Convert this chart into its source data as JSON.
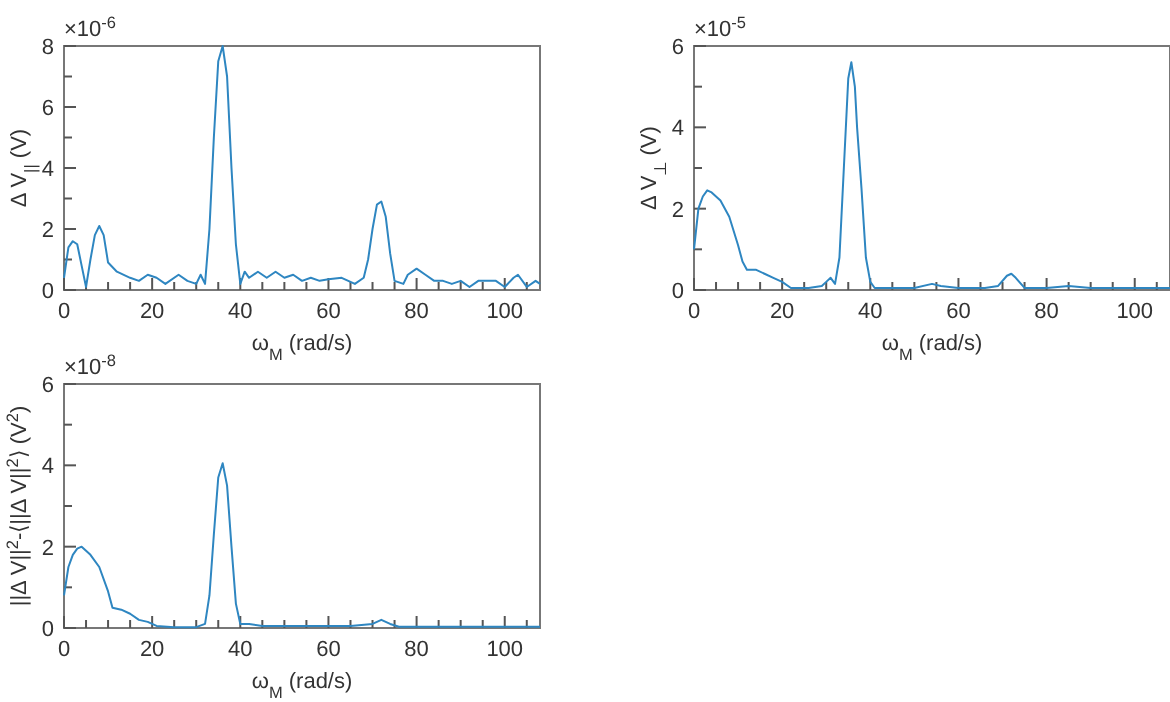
{
  "chart_data": [
    {
      "type": "line",
      "xlabel": "ω$_{M}$ (rad/s)",
      "ylabel": "Δ V$_{||}$ (V)",
      "annotations": [
        "×10$^{-6}$"
      ],
      "xlim": [
        0,
        108
      ],
      "ylim": [
        0,
        8
      ],
      "xticks": [
        0,
        {
          "value": 5,
          "label": null
        },
        {
          "value": 10,
          "label": null
        },
        {
          "value": 15,
          "label": null
        },
        20,
        {
          "value": 25,
          "label": null
        },
        {
          "value": 30,
          "label": null
        },
        {
          "value": 35,
          "label": null
        },
        40,
        {
          "value": 45,
          "label": null
        },
        {
          "value": 50,
          "label": null
        },
        {
          "value": 55,
          "label": null
        },
        60,
        {
          "value": 65,
          "label": null
        },
        {
          "value": 70,
          "label": null
        },
        {
          "value": 75,
          "label": null
        },
        80,
        {
          "value": 85,
          "label": null
        },
        {
          "value": 90,
          "label": null
        },
        {
          "value": 95,
          "label": null
        },
        100,
        {
          "value": 105,
          "label": null
        }
      ],
      "yticks": [
        0,
        {
          "value": 1,
          "label": null
        },
        2,
        {
          "value": 3,
          "label": null
        },
        4,
        {
          "value": 5,
          "label": null
        },
        6,
        {
          "value": 7,
          "label": null
        },
        8
      ],
      "series": [
        {
          "color": "#2e86c1",
          "x": [
            0,
            1,
            2,
            3,
            4,
            5,
            6,
            7,
            8,
            9,
            10,
            12,
            15,
            17,
            19,
            21,
            23,
            26,
            28,
            30,
            31,
            32,
            33,
            34,
            35,
            36,
            37,
            38,
            39,
            40,
            41,
            42,
            44,
            46,
            48,
            50,
            52,
            54,
            56,
            58,
            60,
            63,
            66,
            68,
            69,
            70,
            71,
            72,
            73,
            74,
            75,
            77,
            78,
            80,
            82,
            84,
            86,
            88,
            90,
            92,
            94,
            96,
            98,
            100,
            102,
            103,
            105,
            107,
            108
          ],
          "values": [
            0.4,
            1.4,
            1.6,
            1.5,
            0.8,
            0.1,
            1.0,
            1.8,
            2.1,
            1.8,
            0.9,
            0.6,
            0.4,
            0.3,
            0.5,
            0.4,
            0.2,
            0.5,
            0.3,
            0.2,
            0.5,
            0.2,
            2,
            5,
            7.5,
            8,
            7,
            4,
            1.5,
            0.2,
            0.6,
            0.4,
            0.6,
            0.4,
            0.6,
            0.4,
            0.5,
            0.3,
            0.4,
            0.3,
            0.35,
            0.4,
            0.2,
            0.4,
            1,
            2,
            2.8,
            2.9,
            2.4,
            1.2,
            0.3,
            0.2,
            0.5,
            0.7,
            0.5,
            0.3,
            0.3,
            0.2,
            0.3,
            0.1,
            0.3,
            0.3,
            0.3,
            0.1,
            0.4,
            0.5,
            0.1,
            0.3,
            0.2
          ]
        }
      ]
    },
    {
      "type": "line",
      "xlabel": "ω$_{M}$ (rad/s)",
      "ylabel": "Δ V$_{⊥}$ (V)",
      "annotations": [
        "×10$^{-5}$"
      ],
      "xlim": [
        0,
        108
      ],
      "ylim": [
        0,
        6
      ],
      "xticks": [
        0,
        {
          "value": 5,
          "label": null
        },
        {
          "value": 10,
          "label": null
        },
        {
          "value": 15,
          "label": null
        },
        20,
        {
          "value": 25,
          "label": null
        },
        {
          "value": 30,
          "label": null
        },
        {
          "value": 35,
          "label": null
        },
        40,
        {
          "value": 45,
          "label": null
        },
        {
          "value": 50,
          "label": null
        },
        {
          "value": 55,
          "label": null
        },
        60,
        {
          "value": 65,
          "label": null
        },
        {
          "value": 70,
          "label": null
        },
        {
          "value": 75,
          "label": null
        },
        80,
        {
          "value": 85,
          "label": null
        },
        {
          "value": 90,
          "label": null
        },
        {
          "value": 95,
          "label": null
        },
        100,
        {
          "value": 105,
          "label": null
        }
      ],
      "yticks": [
        0,
        {
          "value": 1,
          "label": null
        },
        2,
        {
          "value": 3,
          "label": null
        },
        4,
        {
          "value": 5,
          "label": null
        },
        6
      ],
      "series": [
        {
          "color": "#2e86c1",
          "x": [
            0,
            1,
            2,
            3,
            4,
            6,
            8,
            10,
            11,
            12,
            14,
            16,
            18,
            20,
            22,
            26,
            29,
            30,
            31,
            32,
            33,
            34,
            35,
            35.7,
            36.5,
            37,
            38,
            39,
            40,
            41,
            45,
            50,
            54,
            56,
            60,
            66,
            69,
            71,
            72,
            73,
            75,
            80,
            85,
            90,
            100,
            108
          ],
          "values": [
            1,
            2,
            2.3,
            2.45,
            2.4,
            2.2,
            1.8,
            1.1,
            0.7,
            0.5,
            0.5,
            0.4,
            0.3,
            0.2,
            0.05,
            0.05,
            0.1,
            0.2,
            0.3,
            0.15,
            0.8,
            3,
            5.2,
            5.6,
            5,
            4,
            2.5,
            0.8,
            0.2,
            0.05,
            0.05,
            0.05,
            0.15,
            0.1,
            0.05,
            0.05,
            0.1,
            0.35,
            0.4,
            0.3,
            0.05,
            0.05,
            0.1,
            0.05,
            0.05,
            0.05
          ]
        }
      ]
    },
    {
      "type": "line",
      "xlabel": "ω$_{M}$ (rad/s)",
      "ylabel": "||Δ V||$^{2}$-⟨||Δ V||$^{2}$⟩ (V$^{2}$)",
      "annotations": [
        "×10$^{-8}$"
      ],
      "xlim": [
        0,
        108
      ],
      "ylim": [
        0,
        6
      ],
      "xticks": [
        0,
        {
          "value": 5,
          "label": null
        },
        {
          "value": 10,
          "label": null
        },
        {
          "value": 15,
          "label": null
        },
        20,
        {
          "value": 25,
          "label": null
        },
        {
          "value": 30,
          "label": null
        },
        {
          "value": 35,
          "label": null
        },
        40,
        {
          "value": 45,
          "label": null
        },
        {
          "value": 50,
          "label": null
        },
        {
          "value": 55,
          "label": null
        },
        60,
        {
          "value": 65,
          "label": null
        },
        {
          "value": 70,
          "label": null
        },
        {
          "value": 75,
          "label": null
        },
        80,
        {
          "value": 85,
          "label": null
        },
        {
          "value": 90,
          "label": null
        },
        {
          "value": 95,
          "label": null
        },
        100,
        {
          "value": 105,
          "label": null
        }
      ],
      "yticks": [
        0,
        {
          "value": 1,
          "label": null
        },
        2,
        {
          "value": 3,
          "label": null
        },
        4,
        {
          "value": 5,
          "label": null
        },
        6
      ],
      "series": [
        {
          "color": "#2e86c1",
          "x": [
            0,
            1,
            2,
            3,
            4,
            6,
            8,
            10,
            11,
            13,
            15,
            17,
            19,
            21,
            25,
            30,
            32,
            33,
            34,
            35,
            36,
            37,
            38,
            39,
            40,
            42,
            45,
            55,
            65,
            70,
            72,
            74,
            76,
            90,
            108
          ],
          "values": [
            0.8,
            1.5,
            1.8,
            1.95,
            2.0,
            1.8,
            1.5,
            0.9,
            0.5,
            0.45,
            0.35,
            0.2,
            0.15,
            0.05,
            0.02,
            0.02,
            0.1,
            0.8,
            2.3,
            3.7,
            4.05,
            3.5,
            2.0,
            0.6,
            0.1,
            0.1,
            0.05,
            0.05,
            0.05,
            0.1,
            0.2,
            0.1,
            0.03,
            0.03,
            0.03
          ]
        }
      ]
    }
  ]
}
